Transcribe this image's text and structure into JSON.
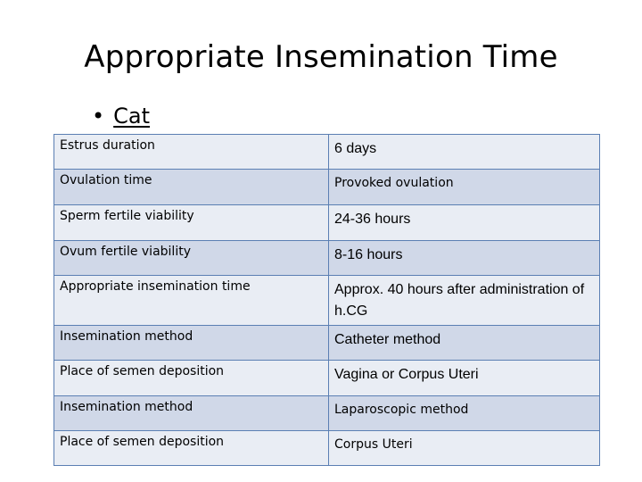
{
  "slide": {
    "title": "Appropriate Insemination Time",
    "bullet_symbol": "•",
    "bullet_label": "Cat"
  },
  "table": {
    "rows": [
      {
        "label": "Estrus duration",
        "value": "6 days"
      },
      {
        "label": "Ovulation time",
        "value": "Provoked ovulation"
      },
      {
        "label": "Sperm fertile viability",
        "value": "24-36 hours"
      },
      {
        "label": "Ovum fertile viability",
        "value": "8-16 hours"
      },
      {
        "label": "Appropriate insemination time",
        "value": "Approx. 40 hours after administration of h.CG"
      },
      {
        "label": "Insemination method",
        "value": "Catheter method"
      },
      {
        "label": "Place of semen deposition",
        "value": "Vagina or Corpus Uteri"
      },
      {
        "label": "Insemination method",
        "value": "Laparoscopic method"
      },
      {
        "label": "Place of semen deposition",
        "value": "Corpus Uteri"
      }
    ]
  },
  "colors": {
    "border": "#5b7fb3",
    "row_light": "#e9edf4",
    "row_dark": "#d0d8e8"
  }
}
